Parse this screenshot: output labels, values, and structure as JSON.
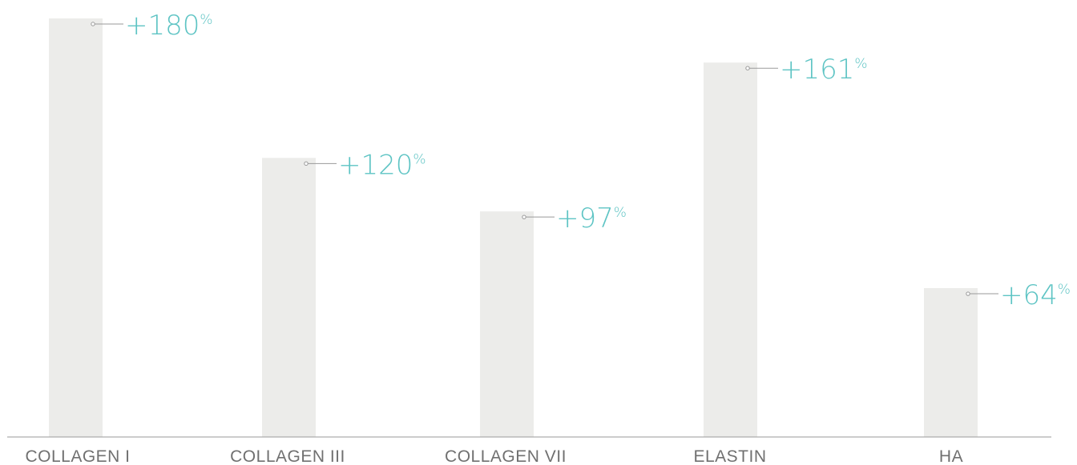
{
  "chart_data": {
    "type": "bar",
    "categories": [
      "COLLAGEN I",
      "COLLAGEN III",
      "COLLAGEN VII",
      "ELASTIN",
      "HA"
    ],
    "values": [
      180,
      120,
      97,
      161,
      64
    ],
    "value_labels": [
      "+180",
      "+120",
      "+97",
      "+161",
      "+64"
    ],
    "value_unit": "%",
    "title": "",
    "xlabel": "",
    "ylabel": "",
    "ylim": [
      0,
      180
    ],
    "grid": false,
    "legend": "none",
    "colors": {
      "bar": "#ececea",
      "value_label": "#5ec4c4",
      "category_label": "#707070",
      "axis": "#9a9a9a",
      "leader": "#9a9a9a"
    }
  }
}
